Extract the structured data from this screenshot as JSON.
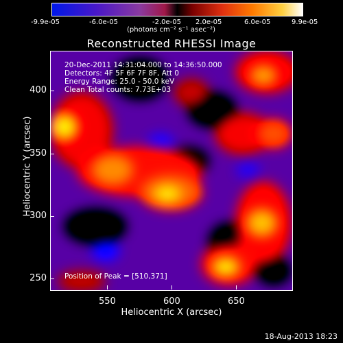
{
  "colorbar": {
    "ticks": [
      "-9.9e-05",
      "-6.0e-05",
      "-2.0e-05",
      "2.0e-05",
      "6.0e-05",
      "9.9e-05"
    ],
    "units": "(photons cm⁻² s⁻¹ asec⁻²)"
  },
  "plot": {
    "title": "Reconstructed RHESSI Image",
    "info_lines": [
      "20-Dec-2011 14:31:04.000 to 14:36:50.000",
      "Detectors: 4F 5F 6F 7F 8F, Att 0",
      "Energy Range: 25.0 - 50.0 keV",
      "Clean     Total counts: 7.73E+03"
    ],
    "peak_label": "Position of Peak = [510,371]",
    "y_ticks": [
      "400",
      "350",
      "300",
      "250"
    ],
    "x_ticks": [
      "550",
      "600",
      "650"
    ],
    "ylabel": "Heliocentric Y (arcsec)",
    "xlabel": "Heliocentric X (arcsec)"
  },
  "footer": {
    "date": "18-Aug-2013 18:23"
  }
}
